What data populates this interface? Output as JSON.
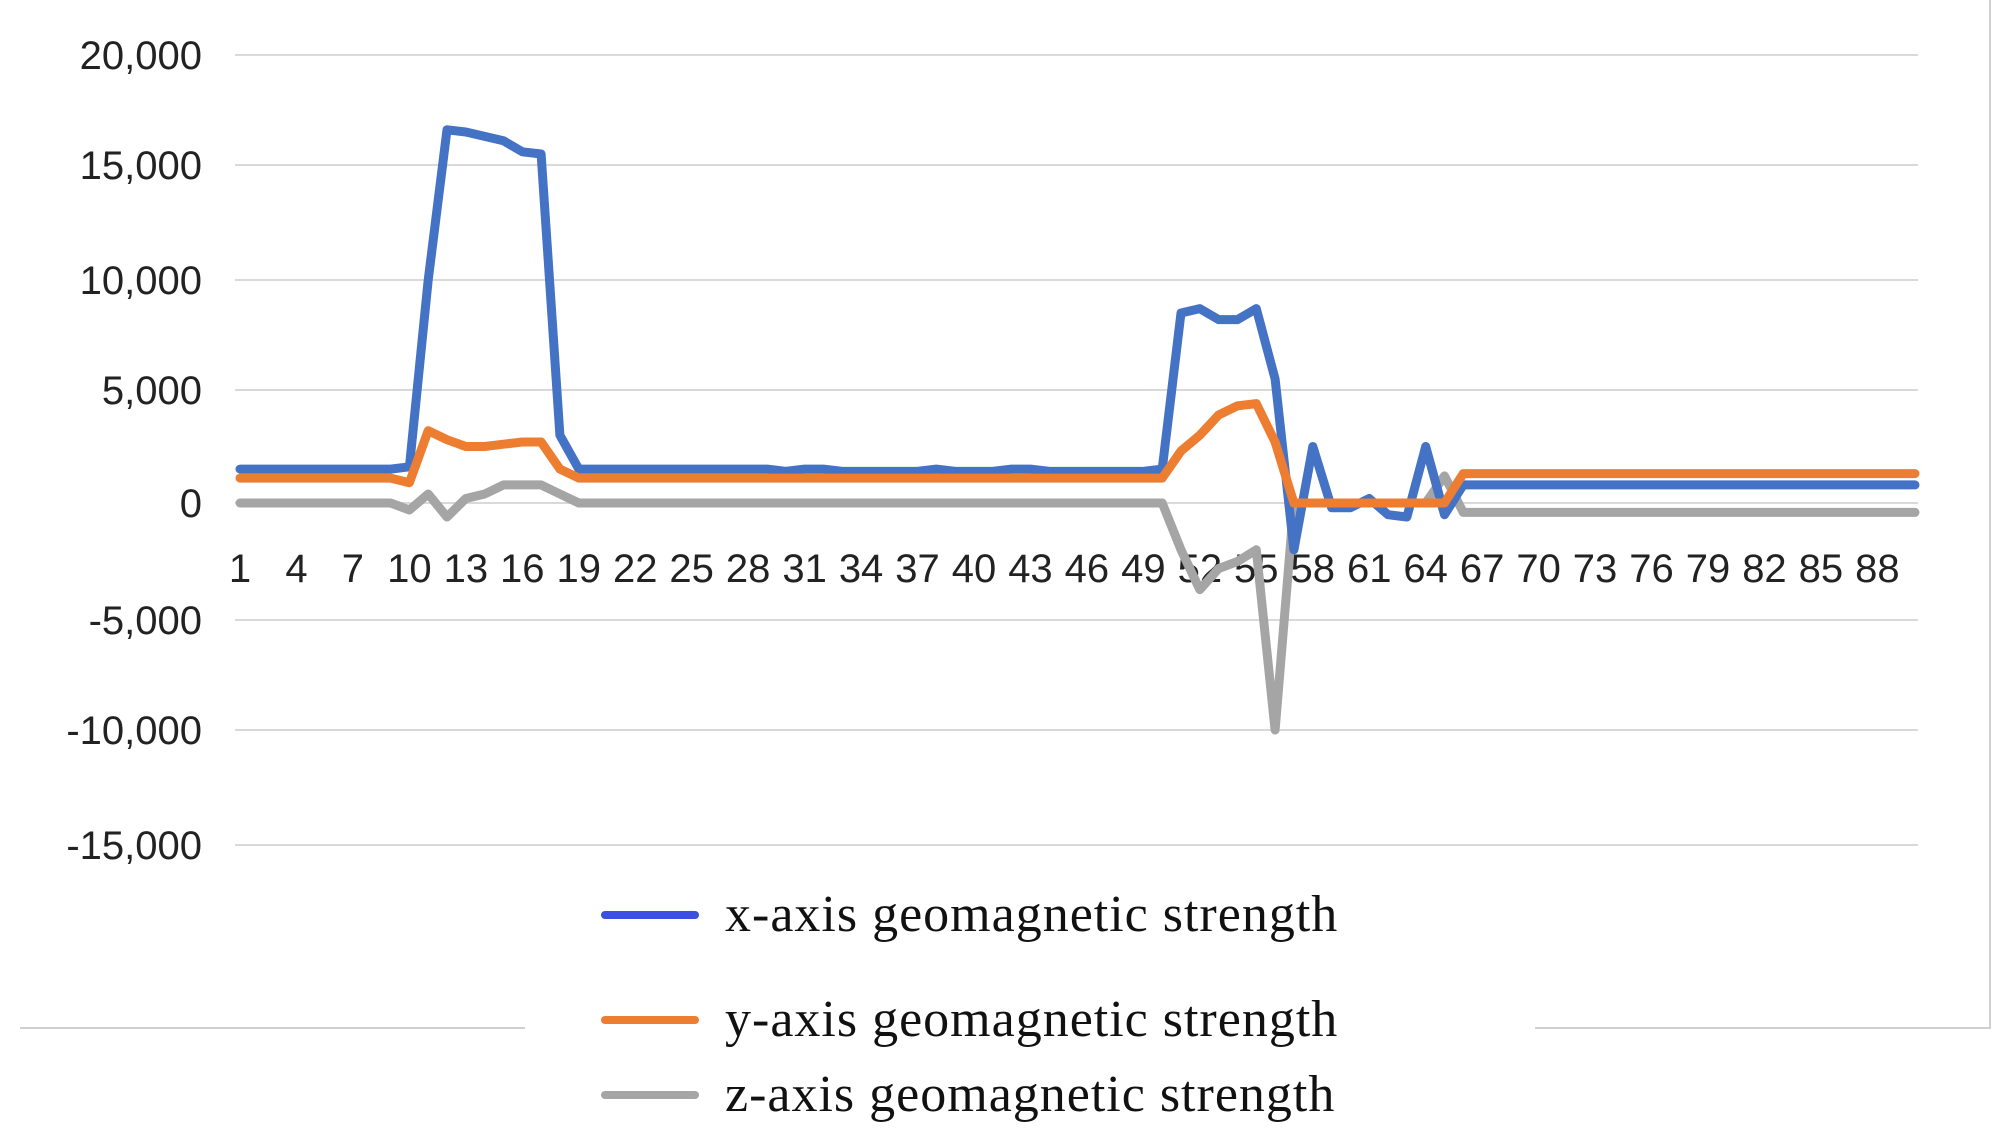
{
  "chart_data": {
    "type": "line",
    "title": "",
    "xlabel": "",
    "ylabel": "",
    "ylim": [
      -15000,
      20000
    ],
    "yticks": [
      20000,
      15000,
      10000,
      5000,
      0,
      -5000,
      -10000,
      -15000
    ],
    "ytick_labels": [
      "20,000",
      "15,000",
      "10,000",
      "5,000",
      "0",
      "-5,000",
      "-10,000",
      "-15,000"
    ],
    "x_range": [
      1,
      90
    ],
    "x_tick_labels": [
      "1",
      "4",
      "7",
      "10",
      "13",
      "16",
      "19",
      "22",
      "25",
      "28",
      "31",
      "34",
      "37",
      "40",
      "43",
      "46",
      "49",
      "52",
      "55",
      "58",
      "61",
      "64",
      "67",
      "70",
      "73",
      "76",
      "79",
      "82",
      "85",
      "88"
    ],
    "grid": true,
    "legend_position": "bottom",
    "series": [
      {
        "name": "x-axis geomagnetic strength",
        "color": "#4472C4",
        "values": [
          1500,
          1500,
          1500,
          1500,
          1500,
          1500,
          1500,
          1500,
          1500,
          1600,
          10000,
          16600,
          16500,
          16300,
          16100,
          15600,
          15500,
          3000,
          1500,
          1500,
          1500,
          1500,
          1500,
          1500,
          1500,
          1500,
          1500,
          1500,
          1500,
          1400,
          1500,
          1500,
          1400,
          1400,
          1400,
          1400,
          1400,
          1500,
          1400,
          1400,
          1400,
          1500,
          1500,
          1400,
          1400,
          1400,
          1400,
          1400,
          1400,
          1500,
          8500,
          8700,
          8200,
          8200,
          8700,
          5500,
          -2000,
          2500,
          -200,
          -200,
          200,
          -500,
          -600,
          2500,
          -500,
          800,
          800,
          800,
          800,
          800,
          800,
          800,
          800,
          800,
          800,
          800,
          800,
          800,
          800,
          800,
          800,
          800,
          800,
          800,
          800,
          800,
          800,
          800,
          800,
          800
        ]
      },
      {
        "name": "y-axis geomagnetic strength",
        "color": "#ED7D31",
        "values": [
          1100,
          1100,
          1100,
          1100,
          1100,
          1100,
          1100,
          1100,
          1100,
          900,
          3200,
          2800,
          2500,
          2500,
          2600,
          2700,
          2700,
          1500,
          1100,
          1100,
          1100,
          1100,
          1100,
          1100,
          1100,
          1100,
          1100,
          1100,
          1100,
          1100,
          1100,
          1100,
          1100,
          1100,
          1100,
          1100,
          1100,
          1100,
          1100,
          1100,
          1100,
          1100,
          1100,
          1100,
          1100,
          1100,
          1100,
          1100,
          1100,
          1100,
          2300,
          3000,
          3900,
          4300,
          4400,
          2700,
          0,
          0,
          0,
          0,
          0,
          0,
          0,
          0,
          0,
          1300,
          1300,
          1300,
          1300,
          1300,
          1300,
          1300,
          1300,
          1300,
          1300,
          1300,
          1300,
          1300,
          1300,
          1300,
          1300,
          1300,
          1300,
          1300,
          1300,
          1300,
          1300,
          1300,
          1300,
          1300
        ]
      },
      {
        "name": "z-axis geomagnetic strength",
        "color": "#A5A5A5",
        "values": [
          0,
          0,
          0,
          0,
          0,
          0,
          0,
          0,
          0,
          -300,
          400,
          -600,
          200,
          400,
          800,
          800,
          800,
          400,
          0,
          0,
          0,
          0,
          0,
          0,
          0,
          0,
          0,
          0,
          0,
          0,
          0,
          0,
          0,
          0,
          0,
          0,
          0,
          0,
          0,
          0,
          0,
          0,
          0,
          0,
          0,
          0,
          0,
          0,
          0,
          0,
          -2000,
          -3700,
          -2800,
          -2500,
          -2000,
          -10000,
          0,
          0,
          0,
          0,
          0,
          0,
          0,
          0,
          1200,
          -400,
          -400,
          -400,
          -400,
          -400,
          -400,
          -400,
          -400,
          -400,
          -400,
          -400,
          -400,
          -400,
          -400,
          -400,
          -400,
          -400,
          -400,
          -400,
          -400,
          -400,
          -400,
          -400,
          -400,
          -400
        ]
      }
    ]
  }
}
